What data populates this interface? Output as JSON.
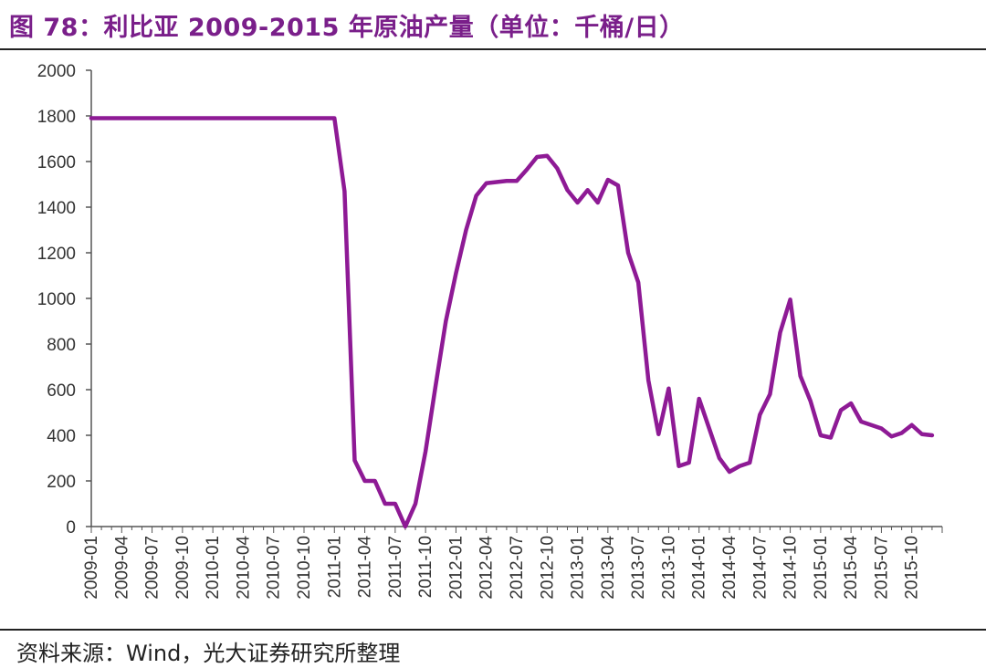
{
  "header": {
    "title": "图 78：利比亚 2009-2015 年原油产量（单位：千桶/日）"
  },
  "footer": {
    "source": "资料来源：Wind，光大证券研究所整理"
  },
  "colors": {
    "series": "#8e1a95",
    "title": "#7a1f8a",
    "axis": "#555555"
  },
  "chart_data": {
    "type": "line",
    "title": "图 78：利比亚 2009-2015 年原油产量（单位：千桶/日）",
    "xlabel": "",
    "ylabel": "",
    "ylim": [
      0,
      2000
    ],
    "yticks": [
      0,
      200,
      400,
      600,
      800,
      1000,
      1200,
      1400,
      1600,
      1800,
      2000
    ],
    "grid": false,
    "legend": "none",
    "xtick_labels": [
      "2009-01",
      "2009-04",
      "2009-07",
      "2009-10",
      "2010-01",
      "2010-04",
      "2010-07",
      "2010-10",
      "2011-01",
      "2011-04",
      "2011-07",
      "2011-10",
      "2012-01",
      "2012-04",
      "2012-07",
      "2012-10",
      "2013-01",
      "2013-04",
      "2013-07",
      "2013-10",
      "2014-01",
      "2014-04",
      "2014-07",
      "2014-10",
      "2015-01",
      "2015-04",
      "2015-07",
      "2015-10"
    ],
    "x": [
      "2009-01",
      "2009-02",
      "2009-03",
      "2009-04",
      "2009-05",
      "2009-06",
      "2009-07",
      "2009-08",
      "2009-09",
      "2009-10",
      "2009-11",
      "2009-12",
      "2010-01",
      "2010-02",
      "2010-03",
      "2010-04",
      "2010-05",
      "2010-06",
      "2010-07",
      "2010-08",
      "2010-09",
      "2010-10",
      "2010-11",
      "2010-12",
      "2011-01",
      "2011-02",
      "2011-03",
      "2011-04",
      "2011-05",
      "2011-06",
      "2011-07",
      "2011-08",
      "2011-09",
      "2011-10",
      "2011-11",
      "2011-12",
      "2012-01",
      "2012-02",
      "2012-03",
      "2012-04",
      "2012-05",
      "2012-06",
      "2012-07",
      "2012-08",
      "2012-09",
      "2012-10",
      "2012-11",
      "2012-12",
      "2013-01",
      "2013-02",
      "2013-03",
      "2013-04",
      "2013-05",
      "2013-06",
      "2013-07",
      "2013-08",
      "2013-09",
      "2013-10",
      "2013-11",
      "2013-12",
      "2014-01",
      "2014-02",
      "2014-03",
      "2014-04",
      "2014-05",
      "2014-06",
      "2014-07",
      "2014-08",
      "2014-09",
      "2014-10",
      "2014-11",
      "2014-12",
      "2015-01",
      "2015-02",
      "2015-03",
      "2015-04",
      "2015-05",
      "2015-06",
      "2015-07",
      "2015-08",
      "2015-09",
      "2015-10",
      "2015-11",
      "2015-12"
    ],
    "series": [
      {
        "values": [
          1790,
          1790,
          1790,
          1790,
          1790,
          1790,
          1790,
          1790,
          1790,
          1790,
          1790,
          1790,
          1790,
          1790,
          1790,
          1790,
          1790,
          1790,
          1790,
          1790,
          1790,
          1790,
          1790,
          1790,
          1790,
          1470,
          290,
          200,
          200,
          100,
          100,
          0,
          100,
          330,
          620,
          900,
          1110,
          1300,
          1450,
          1505,
          1510,
          1515,
          1515,
          1565,
          1620,
          1625,
          1570,
          1475,
          1420,
          1475,
          1420,
          1520,
          1495,
          1200,
          1070,
          640,
          405,
          605,
          265,
          280,
          560,
          430,
          300,
          240,
          265,
          280,
          490,
          580,
          850,
          995,
          660,
          550,
          400,
          390,
          510,
          540,
          460,
          445,
          430,
          395,
          410,
          445,
          405,
          400
        ]
      }
    ]
  }
}
